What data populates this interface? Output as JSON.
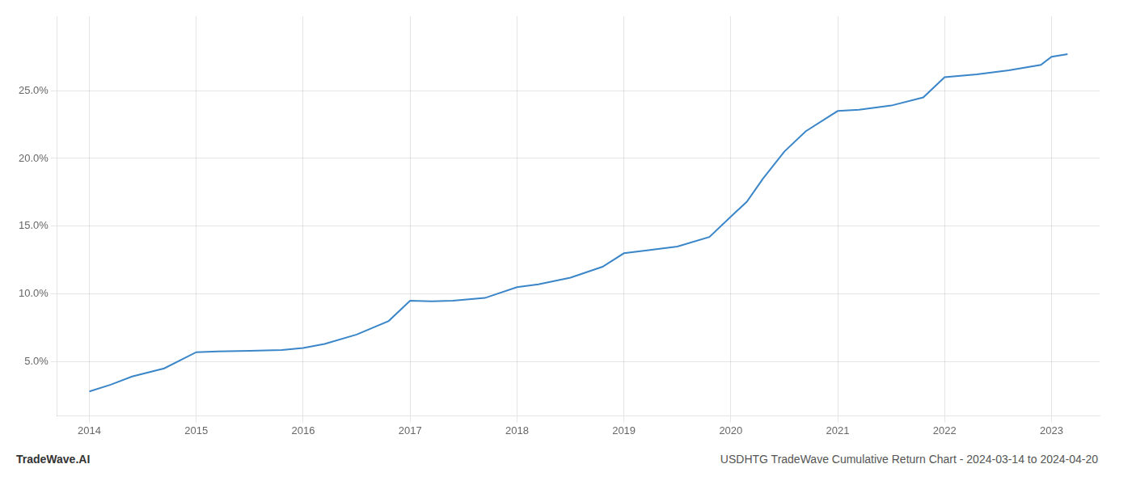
{
  "chart_data": {
    "type": "line",
    "x": [
      2014.0,
      2014.2,
      2014.4,
      2014.7,
      2015.0,
      2015.2,
      2015.5,
      2015.8,
      2016.0,
      2016.2,
      2016.5,
      2016.8,
      2017.0,
      2017.2,
      2017.4,
      2017.7,
      2018.0,
      2018.2,
      2018.5,
      2018.8,
      2019.0,
      2019.2,
      2019.5,
      2019.8,
      2020.0,
      2020.15,
      2020.3,
      2020.5,
      2020.7,
      2020.9,
      2021.0,
      2021.2,
      2021.5,
      2021.8,
      2022.0,
      2022.3,
      2022.6,
      2022.9,
      2023.0,
      2023.15
    ],
    "values": [
      2.8,
      3.3,
      3.9,
      4.5,
      5.7,
      5.75,
      5.8,
      5.85,
      6.0,
      6.3,
      7.0,
      8.0,
      9.5,
      9.45,
      9.5,
      9.7,
      10.5,
      10.7,
      11.2,
      12.0,
      13.0,
      13.2,
      13.5,
      14.2,
      15.7,
      16.8,
      18.5,
      20.5,
      22.0,
      23.0,
      23.5,
      23.6,
      23.9,
      24.5,
      26.0,
      26.2,
      26.5,
      26.9,
      27.5,
      27.7
    ],
    "color": "#3a86c8",
    "xlim": [
      2013.7,
      2023.45
    ],
    "xticks": [
      2014,
      2015,
      2016,
      2017,
      2018,
      2019,
      2020,
      2021,
      2022,
      2023
    ],
    "ylim": [
      1.0,
      30.5
    ],
    "yticks": [
      {
        "value": 5.0,
        "label": "5.0%"
      },
      {
        "value": 10.0,
        "label": "10.0%"
      },
      {
        "value": 15.0,
        "label": "15.0%"
      },
      {
        "value": 20.0,
        "label": "20.0%"
      },
      {
        "value": 25.0,
        "label": "25.0%"
      }
    ],
    "grid": true,
    "annotations": [
      "TradeWave.AI",
      "USDHTG TradeWave Cumulative Return Chart - 2024-03-14 to 2024-04-20"
    ]
  }
}
